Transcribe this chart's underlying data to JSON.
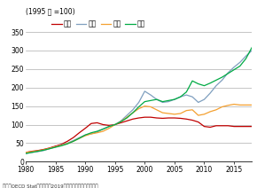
{
  "title_label": "(1995 年 =100)",
  "source_label": "資料：OECD Stat　　出所：2019年版「情報通信白書」概要",
  "legend": [
    "日本",
    "米国",
    "英国",
    "仏国"
  ],
  "colors": [
    "#c00000",
    "#7f9fbf",
    "#f4a030",
    "#00aa44"
  ],
  "xlim": [
    1980,
    2018
  ],
  "ylim": [
    0,
    350
  ],
  "yticks": [
    0,
    50,
    100,
    150,
    200,
    250,
    300,
    350
  ],
  "xticks": [
    1980,
    1985,
    1990,
    1995,
    2000,
    2005,
    2010,
    2015
  ],
  "japan": [
    [
      1980,
      25
    ],
    [
      1981,
      28
    ],
    [
      1982,
      30
    ],
    [
      1983,
      33
    ],
    [
      1984,
      37
    ],
    [
      1985,
      42
    ],
    [
      1986,
      47
    ],
    [
      1987,
      55
    ],
    [
      1988,
      65
    ],
    [
      1989,
      78
    ],
    [
      1990,
      90
    ],
    [
      1991,
      103
    ],
    [
      1992,
      105
    ],
    [
      1993,
      100
    ],
    [
      1994,
      98
    ],
    [
      1995,
      100
    ],
    [
      1996,
      105
    ],
    [
      1997,
      110
    ],
    [
      1998,
      115
    ],
    [
      1999,
      118
    ],
    [
      2000,
      120
    ],
    [
      2001,
      120
    ],
    [
      2002,
      118
    ],
    [
      2003,
      117
    ],
    [
      2004,
      118
    ],
    [
      2005,
      118
    ],
    [
      2006,
      117
    ],
    [
      2007,
      115
    ],
    [
      2008,
      112
    ],
    [
      2009,
      107
    ],
    [
      2010,
      95
    ],
    [
      2011,
      93
    ],
    [
      2012,
      97
    ],
    [
      2013,
      97
    ],
    [
      2014,
      97
    ],
    [
      2015,
      95
    ],
    [
      2016,
      95
    ],
    [
      2017,
      95
    ],
    [
      2018,
      95
    ]
  ],
  "usa": [
    [
      1980,
      22
    ],
    [
      1981,
      25
    ],
    [
      1982,
      27
    ],
    [
      1983,
      30
    ],
    [
      1984,
      35
    ],
    [
      1985,
      40
    ],
    [
      1986,
      45
    ],
    [
      1987,
      50
    ],
    [
      1988,
      57
    ],
    [
      1989,
      65
    ],
    [
      1990,
      72
    ],
    [
      1991,
      75
    ],
    [
      1992,
      80
    ],
    [
      1993,
      88
    ],
    [
      1994,
      95
    ],
    [
      1995,
      100
    ],
    [
      1996,
      110
    ],
    [
      1997,
      125
    ],
    [
      1998,
      140
    ],
    [
      1999,
      160
    ],
    [
      2000,
      190
    ],
    [
      2001,
      180
    ],
    [
      2002,
      168
    ],
    [
      2003,
      160
    ],
    [
      2004,
      162
    ],
    [
      2005,
      168
    ],
    [
      2006,
      175
    ],
    [
      2007,
      180
    ],
    [
      2008,
      175
    ],
    [
      2009,
      160
    ],
    [
      2010,
      168
    ],
    [
      2011,
      185
    ],
    [
      2012,
      205
    ],
    [
      2013,
      220
    ],
    [
      2014,
      240
    ],
    [
      2015,
      255
    ],
    [
      2016,
      268
    ],
    [
      2017,
      285
    ],
    [
      2018,
      300
    ]
  ],
  "uk": [
    [
      1980,
      25
    ],
    [
      1981,
      27
    ],
    [
      1982,
      29
    ],
    [
      1983,
      32
    ],
    [
      1984,
      36
    ],
    [
      1985,
      40
    ],
    [
      1986,
      44
    ],
    [
      1987,
      49
    ],
    [
      1988,
      55
    ],
    [
      1989,
      63
    ],
    [
      1990,
      70
    ],
    [
      1991,
      75
    ],
    [
      1992,
      78
    ],
    [
      1993,
      82
    ],
    [
      1994,
      90
    ],
    [
      1995,
      100
    ],
    [
      1996,
      108
    ],
    [
      1997,
      120
    ],
    [
      1998,
      132
    ],
    [
      1999,
      143
    ],
    [
      2000,
      150
    ],
    [
      2001,
      148
    ],
    [
      2002,
      140
    ],
    [
      2003,
      132
    ],
    [
      2004,
      130
    ],
    [
      2005,
      128
    ],
    [
      2006,
      130
    ],
    [
      2007,
      138
    ],
    [
      2008,
      140
    ],
    [
      2009,
      125
    ],
    [
      2010,
      128
    ],
    [
      2011,
      135
    ],
    [
      2012,
      140
    ],
    [
      2013,
      148
    ],
    [
      2014,
      152
    ],
    [
      2015,
      155
    ],
    [
      2016,
      153
    ],
    [
      2017,
      153
    ],
    [
      2018,
      153
    ]
  ],
  "france": [
    [
      1980,
      22
    ],
    [
      1981,
      25
    ],
    [
      1982,
      28
    ],
    [
      1983,
      31
    ],
    [
      1984,
      35
    ],
    [
      1985,
      39
    ],
    [
      1986,
      43
    ],
    [
      1987,
      48
    ],
    [
      1988,
      55
    ],
    [
      1989,
      63
    ],
    [
      1990,
      72
    ],
    [
      1991,
      78
    ],
    [
      1992,
      82
    ],
    [
      1993,
      88
    ],
    [
      1994,
      95
    ],
    [
      1995,
      100
    ],
    [
      1996,
      108
    ],
    [
      1997,
      118
    ],
    [
      1998,
      132
    ],
    [
      1999,
      148
    ],
    [
      2000,
      162
    ],
    [
      2001,
      165
    ],
    [
      2002,
      168
    ],
    [
      2003,
      162
    ],
    [
      2004,
      165
    ],
    [
      2005,
      168
    ],
    [
      2006,
      175
    ],
    [
      2007,
      188
    ],
    [
      2008,
      218
    ],
    [
      2009,
      210
    ],
    [
      2010,
      205
    ],
    [
      2011,
      212
    ],
    [
      2012,
      220
    ],
    [
      2013,
      228
    ],
    [
      2014,
      238
    ],
    [
      2015,
      248
    ],
    [
      2016,
      258
    ],
    [
      2017,
      278
    ],
    [
      2018,
      308
    ]
  ]
}
